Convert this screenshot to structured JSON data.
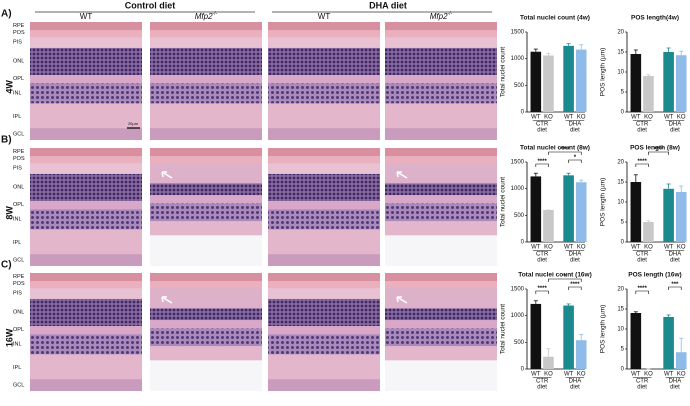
{
  "figure": {
    "panels": [
      "A)",
      "B)",
      "C)"
    ],
    "weeks": [
      "4W",
      "8W",
      "16W"
    ],
    "diets": [
      "Control diet",
      "DHA diet"
    ],
    "columns": [
      "WT",
      "Mfp2",
      "WT",
      "Mfp2"
    ],
    "ko_superscript": "-/-",
    "layers": [
      "RPE",
      "POS",
      "PIS",
      "ONL",
      "OPL",
      "INL",
      "IPL",
      "GCL"
    ],
    "scale_bar": "20µm"
  },
  "chart_data": [
    {
      "type": "bar",
      "title": "Total nuclei count (4w)",
      "ylabel": "Total nuclei count",
      "categories": [
        "WT",
        "KO",
        "WT",
        "KO"
      ],
      "groups": [
        [
          "CTR",
          "diet"
        ],
        [
          "DHA",
          "diet"
        ]
      ],
      "values": [
        1130,
        1060,
        1240,
        1170
      ],
      "errors": [
        50,
        40,
        40,
        90
      ],
      "colors": [
        "#111111",
        "#c8c8c8",
        "#1b8a8f",
        "#8fbbe8"
      ],
      "ylim": [
        0,
        1500
      ],
      "yticks": [
        0,
        500,
        1000,
        1500
      ],
      "brackets": []
    },
    {
      "type": "bar",
      "title": "POS length(4w)",
      "ylabel": "POS length (µm)",
      "categories": [
        "WT",
        "KO",
        "WT",
        "KO"
      ],
      "groups": [
        [
          "CTR",
          "diet"
        ],
        [
          "DHA",
          "diet"
        ]
      ],
      "values": [
        14.5,
        9,
        15,
        14.2
      ],
      "errors": [
        1,
        0.3,
        1,
        1
      ],
      "colors": [
        "#111111",
        "#c8c8c8",
        "#1b8a8f",
        "#8fbbe8"
      ],
      "ylim": [
        0,
        20
      ],
      "yticks": [
        0,
        5,
        10,
        15,
        20
      ],
      "brackets": []
    },
    {
      "type": "bar",
      "title": "Total nuclei count (8w)",
      "ylabel": "Total nuclei count",
      "categories": [
        "WT",
        "KO",
        "WT",
        "KO"
      ],
      "groups": [
        [
          "CTR",
          "diet"
        ],
        [
          "DHA",
          "diet"
        ]
      ],
      "values": [
        1230,
        600,
        1250,
        1120
      ],
      "errors": [
        60,
        0,
        40,
        40
      ],
      "colors": [
        "#111111",
        "#c8c8c8",
        "#1b8a8f",
        "#8fbbe8"
      ],
      "ylim": [
        0,
        1500
      ],
      "yticks": [
        0,
        500,
        1000,
        1500
      ],
      "brackets": [
        {
          "text": "****",
          "between": [
            0,
            1
          ]
        },
        {
          "text": "****",
          "between": [
            1,
            3
          ]
        },
        {
          "text": "*",
          "between": [
            2,
            3
          ]
        }
      ]
    },
    {
      "type": "bar",
      "title": "POS length (8w)",
      "ylabel": "POS length (µm)",
      "categories": [
        "WT",
        "KO",
        "WT",
        "KO"
      ],
      "groups": [
        [
          "CTR",
          "diet"
        ],
        [
          "DHA",
          "diet"
        ]
      ],
      "values": [
        15,
        5,
        13.3,
        12.5
      ],
      "errors": [
        1.8,
        0.3,
        1.2,
        1.5
      ],
      "colors": [
        "#111111",
        "#c8c8c8",
        "#1b8a8f",
        "#8fbbe8"
      ],
      "ylim": [
        0,
        20
      ],
      "yticks": [
        0,
        5,
        10,
        15,
        20
      ],
      "brackets": [
        {
          "text": "****",
          "between": [
            0,
            1
          ]
        },
        {
          "text": "****",
          "between": [
            1,
            2
          ]
        }
      ]
    },
    {
      "type": "bar",
      "title": "Total nuclei count (16w)",
      "ylabel": "Total nuclei count",
      "categories": [
        "WT",
        "KO",
        "WT",
        "KO"
      ],
      "groups": [
        [
          "CTR",
          "diet"
        ],
        [
          "DHA",
          "diet"
        ]
      ],
      "values": [
        1220,
        230,
        1190,
        540
      ],
      "errors": [
        60,
        150,
        30,
        110
      ],
      "colors": [
        "#111111",
        "#c8c8c8",
        "#1b8a8f",
        "#8fbbe8"
      ],
      "ylim": [
        0,
        1500
      ],
      "yticks": [
        0,
        500,
        1000,
        1500
      ],
      "brackets": [
        {
          "text": "****",
          "between": [
            0,
            1
          ]
        },
        {
          "text": "*",
          "between": [
            1,
            3
          ]
        },
        {
          "text": "****",
          "between": [
            2,
            3
          ]
        }
      ]
    },
    {
      "type": "bar",
      "title": "POS length (16w)",
      "ylabel": "POS length (µm)",
      "categories": [
        "WT",
        "KO",
        "WT",
        "KO"
      ],
      "groups": [
        [
          "CTR",
          "diet"
        ],
        [
          "DHA",
          "diet"
        ]
      ],
      "values": [
        14,
        0,
        13,
        4.2
      ],
      "errors": [
        0.3,
        0,
        0.5,
        3.5
      ],
      "colors": [
        "#111111",
        "#c8c8c8",
        "#1b8a8f",
        "#8fbbe8"
      ],
      "ylim": [
        0,
        20
      ],
      "yticks": [
        0,
        5,
        10,
        15,
        20
      ],
      "brackets": [
        {
          "text": "****",
          "between": [
            0,
            1
          ]
        },
        {
          "text": "***",
          "between": [
            2,
            3
          ]
        }
      ]
    }
  ]
}
